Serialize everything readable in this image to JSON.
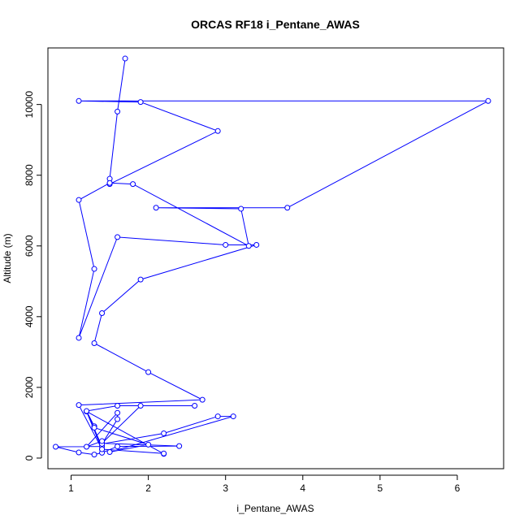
{
  "chart_data": {
    "type": "line",
    "title": "ORCAS RF18 i_Pentane_AWAS",
    "xlabel": "i_Pentane_AWAS",
    "ylabel": "Altitude (m)",
    "xlim": [
      0.7,
      6.6
    ],
    "ylim": [
      -300,
      11600
    ],
    "x_ticks": [
      "1",
      "2",
      "3",
      "4",
      "5",
      "6"
    ],
    "y_ticks": [
      "0",
      "2000",
      "4000",
      "6000",
      "8000",
      "10000"
    ],
    "grid": false,
    "series_color": "#0000ff",
    "series": [
      {
        "x": [
          1.7,
          1.6,
          1.5,
          1.5,
          2.9,
          1.9,
          1.1,
          6.4,
          3.8,
          2.1,
          3.2,
          3.3,
          1.8,
          1.5,
          1.1,
          1.3,
          1.1,
          1.6,
          3.0,
          3.4,
          1.9,
          1.4,
          1.3,
          2.0,
          2.7,
          1.1,
          1.4,
          1.2,
          2.2,
          1.2,
          1.4,
          0.8,
          1.1,
          1.3,
          1.4,
          1.6,
          2.4,
          1.4,
          1.9,
          2.6,
          1.6,
          1.2,
          1.3,
          1.3,
          2.0,
          1.5,
          3.1,
          2.9,
          2.2,
          1.4,
          1.6,
          1.6,
          1.2,
          1.4,
          1.4,
          2.2
        ],
        "y": [
          11300,
          9800,
          7900,
          7750,
          9250,
          10070,
          10100,
          10100,
          7080,
          7080,
          7050,
          6000,
          7750,
          7780,
          7300,
          5350,
          3400,
          6250,
          6030,
          6030,
          5050,
          4100,
          3250,
          2430,
          1650,
          1500,
          250,
          1320,
          120,
          1320,
          330,
          320,
          160,
          100,
          150,
          330,
          340,
          420,
          1480,
          1480,
          1480,
          1330,
          900,
          860,
          380,
          170,
          1180,
          1180,
          700,
          400,
          1100,
          1280,
          320,
          480,
          250,
          130
        ]
      }
    ]
  }
}
